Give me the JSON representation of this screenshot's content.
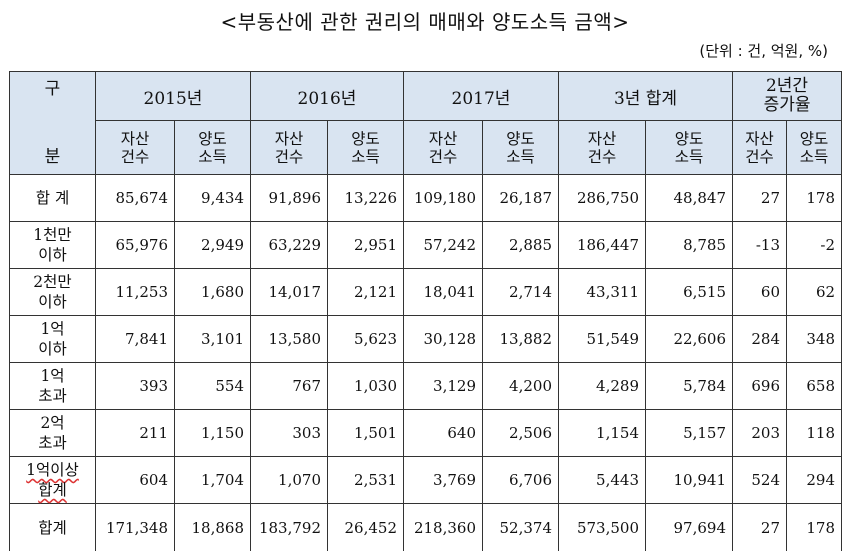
{
  "title": "<부동산에 관한 권리의 매매와 양도소득 금액>",
  "unit": "(단위 : 건, 억원, %)",
  "header": {
    "gubun": "구\n\n분",
    "years": [
      "2015년",
      "2016년",
      "2017년",
      "3년 합계"
    ],
    "change": "2년간\n증가율",
    "sub_count": "자산\n건수",
    "sub_income": "양도\n소득"
  },
  "rows": [
    {
      "label": "합 계",
      "values": [
        "85,674",
        "9,434",
        "91,896",
        "13,226",
        "109,180",
        "26,187",
        "286,750",
        "48,847",
        "27",
        "178"
      ]
    },
    {
      "label": "1천만\n이하",
      "values": [
        "65,976",
        "2,949",
        "63,229",
        "2,951",
        "57,242",
        "2,885",
        "186,447",
        "8,785",
        "-13",
        "-2"
      ]
    },
    {
      "label": "2천만\n이하",
      "values": [
        "11,253",
        "1,680",
        "14,017",
        "2,121",
        "18,041",
        "2,714",
        "43,311",
        "6,515",
        "60",
        "62"
      ]
    },
    {
      "label": "1억\n이하",
      "values": [
        "7,841",
        "3,101",
        "13,580",
        "5,623",
        "30,128",
        "13,882",
        "51,549",
        "22,606",
        "284",
        "348"
      ]
    },
    {
      "label": "1억\n초과",
      "values": [
        "393",
        "554",
        "767",
        "1,030",
        "3,129",
        "4,200",
        "4,289",
        "5,784",
        "696",
        "658"
      ]
    },
    {
      "label": "2억\n초과",
      "values": [
        "211",
        "1,150",
        "303",
        "1,501",
        "640",
        "2,506",
        "1,154",
        "5,157",
        "203",
        "118"
      ]
    },
    {
      "label": "1억이상\n합계",
      "values": [
        "604",
        "1,704",
        "1,070",
        "2,531",
        "3,769",
        "6,706",
        "5,443",
        "10,941",
        "524",
        "294"
      ]
    },
    {
      "label": "합계",
      "values": [
        "171,348",
        "18,868",
        "183,792",
        "26,452",
        "218,360",
        "52,374",
        "573,500",
        "97,694",
        "27",
        "178"
      ]
    }
  ]
}
